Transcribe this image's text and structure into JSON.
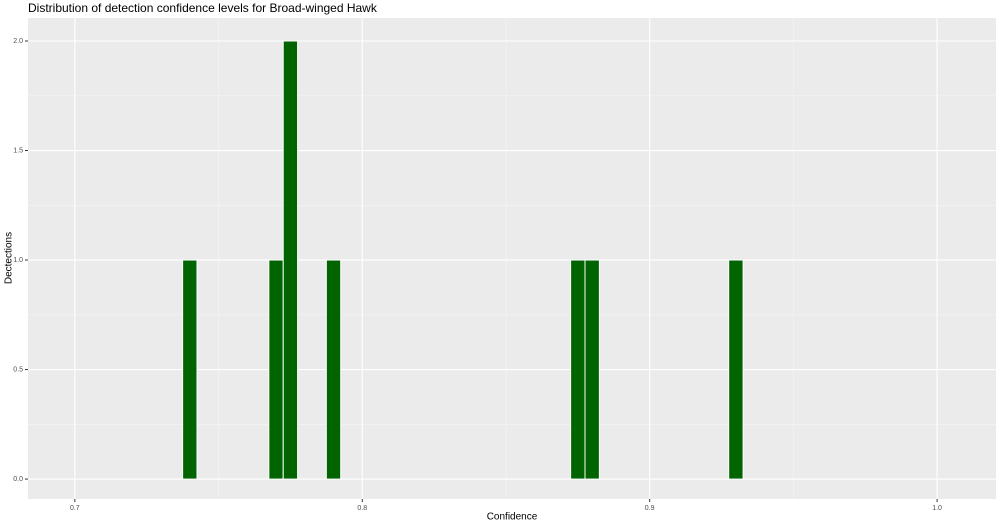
{
  "chart_data": {
    "type": "histogram",
    "title": "Distribution of detection confidence levels for Broad-winged Hawk",
    "x_label": "Confidence",
    "y_label": "Dectections",
    "bins": [
      0.7375,
      0.7425,
      0.7475,
      0.7525,
      0.7575,
      0.7625,
      0.7675,
      0.7725,
      0.7775,
      0.7825,
      0.7875,
      0.7925,
      0.7975,
      0.8025,
      0.8075,
      0.8125,
      0.8175,
      0.8225,
      0.8275,
      0.8325,
      0.8375,
      0.8425,
      0.8475,
      0.8525,
      0.8575,
      0.8625,
      0.8675,
      0.8725,
      0.8775,
      0.8825,
      0.8875,
      0.8925,
      0.8975,
      0.9025,
      0.9075,
      0.9125,
      0.9175,
      0.9225,
      0.9275,
      0.9325
    ],
    "values": [
      1,
      0,
      0,
      0,
      0,
      0,
      1,
      2,
      0,
      0,
      1,
      0,
      0,
      0,
      0,
      0,
      0,
      0,
      0,
      0,
      0,
      0,
      0,
      0,
      0,
      0,
      0,
      1,
      1,
      0,
      0,
      0,
      0,
      0,
      0,
      0,
      0,
      0,
      1
    ],
    "color": "#006400",
    "xlim": [
      0.6837,
      1.0205
    ],
    "xticks": [
      0.7,
      0.8,
      0.9,
      {
        "value": 1,
        "label": "1.0"
      }
    ],
    "ylim": [
      -0.091,
      2.105
    ],
    "yticks": [
      {
        "value": 0,
        "label": "0.0"
      },
      0.5,
      {
        "value": 1,
        "label": "1.0"
      },
      1.5,
      {
        "value": 2,
        "label": "2.0"
      }
    ],
    "grid": true
  }
}
